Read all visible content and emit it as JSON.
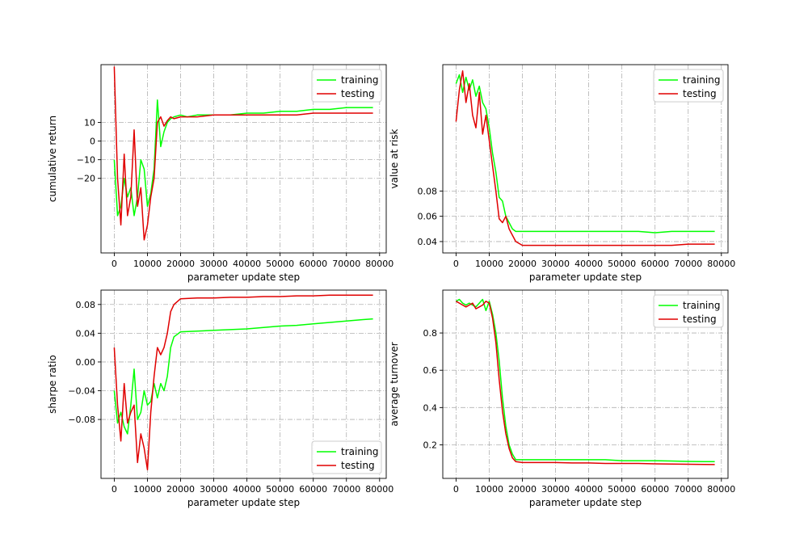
{
  "colors": {
    "training": "#00ff00",
    "testing": "#e00000",
    "grid": "#b0b0b0",
    "axis": "#000000"
  },
  "chart_data": [
    {
      "type": "line",
      "id": "cumret",
      "xlabel": "parameter update step",
      "ylabel": "cumulative return",
      "xlim": [
        -4000,
        82000
      ],
      "ylim": [
        -60,
        41
      ],
      "xticks": [
        0,
        10000,
        20000,
        30000,
        40000,
        50000,
        60000,
        70000,
        80000
      ],
      "yticks": [
        10,
        0,
        -10,
        -20
      ],
      "ytick_labels": [
        "10",
        "0",
        "−10",
        "−20"
      ],
      "legend_loc": "top-right",
      "series": [
        {
          "name": "training",
          "color": "#00ff00",
          "x": [
            0,
            1000,
            2000,
            3000,
            4000,
            5000,
            6000,
            7000,
            8000,
            9000,
            10000,
            11000,
            12000,
            13000,
            14000,
            15000,
            16000,
            17000,
            18000,
            20000,
            22000,
            25000,
            30000,
            35000,
            40000,
            45000,
            50000,
            55000,
            60000,
            65000,
            70000,
            75000,
            78000
          ],
          "y": [
            -10,
            -40,
            -35,
            -20,
            -30,
            -25,
            -40,
            -30,
            -10,
            -15,
            -35,
            -28,
            -15,
            22,
            -3,
            5,
            10,
            12,
            13,
            14,
            13,
            14,
            14,
            14,
            15,
            15,
            16,
            16,
            17,
            17,
            18,
            18,
            18
          ]
        },
        {
          "name": "testing",
          "color": "#e00000",
          "x": [
            0,
            1000,
            2000,
            3000,
            4000,
            5000,
            6000,
            7000,
            8000,
            9000,
            10000,
            11000,
            12000,
            13000,
            14000,
            15000,
            16000,
            17000,
            18000,
            20000,
            22000,
            25000,
            30000,
            35000,
            40000,
            45000,
            50000,
            55000,
            60000,
            65000,
            70000,
            75000,
            78000
          ],
          "y": [
            40,
            -20,
            -45,
            -7,
            -40,
            -30,
            6,
            -35,
            -25,
            -53,
            -45,
            -30,
            -20,
            10,
            13,
            8,
            11,
            13,
            12,
            13,
            13,
            13,
            14,
            14,
            14,
            14,
            14,
            14,
            15,
            15,
            15,
            15,
            15
          ]
        }
      ]
    },
    {
      "type": "line",
      "id": "var",
      "xlabel": "parameter update step",
      "ylabel": "value at risk",
      "xlim": [
        -4000,
        82000
      ],
      "ylim": [
        0.031,
        0.18
      ],
      "xticks": [
        0,
        10000,
        20000,
        30000,
        40000,
        50000,
        60000,
        70000,
        80000
      ],
      "yticks": [
        0.04,
        0.06,
        0.08
      ],
      "ytick_labels": [
        "0.04",
        "0.06",
        "0.08"
      ],
      "legend_loc": "top-right",
      "series": [
        {
          "name": "training",
          "color": "#00ff00",
          "x": [
            0,
            1000,
            2000,
            3000,
            4000,
            5000,
            6000,
            7000,
            8000,
            9000,
            10000,
            11000,
            12000,
            13000,
            14000,
            15000,
            16000,
            17000,
            18000,
            20000,
            25000,
            30000,
            35000,
            40000,
            45000,
            50000,
            55000,
            60000,
            65000,
            70000,
            75000,
            78000
          ],
          "y": [
            0.165,
            0.172,
            0.158,
            0.17,
            0.16,
            0.168,
            0.155,
            0.163,
            0.15,
            0.145,
            0.13,
            0.11,
            0.095,
            0.075,
            0.072,
            0.06,
            0.055,
            0.05,
            0.048,
            0.048,
            0.048,
            0.048,
            0.048,
            0.048,
            0.048,
            0.048,
            0.048,
            0.047,
            0.048,
            0.048,
            0.048,
            0.048
          ]
        },
        {
          "name": "testing",
          "color": "#e00000",
          "x": [
            0,
            1000,
            2000,
            3000,
            4000,
            5000,
            6000,
            7000,
            8000,
            9000,
            10000,
            11000,
            12000,
            13000,
            14000,
            15000,
            16000,
            17000,
            18000,
            20000,
            25000,
            30000,
            35000,
            40000,
            45000,
            50000,
            55000,
            60000,
            65000,
            70000,
            75000,
            78000
          ],
          "y": [
            0.135,
            0.16,
            0.175,
            0.15,
            0.165,
            0.14,
            0.13,
            0.158,
            0.125,
            0.14,
            0.12,
            0.1,
            0.08,
            0.058,
            0.055,
            0.06,
            0.05,
            0.045,
            0.04,
            0.037,
            0.037,
            0.037,
            0.037,
            0.037,
            0.037,
            0.037,
            0.037,
            0.037,
            0.037,
            0.038,
            0.038,
            0.038
          ]
        }
      ]
    },
    {
      "type": "line",
      "id": "sharpe",
      "xlabel": "parameter update step",
      "ylabel": "sharpe ratio",
      "xlim": [
        -4000,
        82000
      ],
      "ylim": [
        -0.162,
        0.1
      ],
      "xticks": [
        0,
        10000,
        20000,
        30000,
        40000,
        50000,
        60000,
        70000,
        80000
      ],
      "yticks": [
        0.08,
        0.04,
        0.0,
        -0.04,
        -0.08
      ],
      "ytick_labels": [
        "0.08",
        "0.04",
        "0.00",
        "−0.04",
        "−0.08"
      ],
      "legend_loc": "bottom-right",
      "series": [
        {
          "name": "training",
          "color": "#00ff00",
          "x": [
            0,
            1000,
            2000,
            3000,
            4000,
            5000,
            6000,
            7000,
            8000,
            9000,
            10000,
            11000,
            12000,
            13000,
            14000,
            15000,
            16000,
            17000,
            18000,
            20000,
            25000,
            30000,
            35000,
            40000,
            45000,
            50000,
            55000,
            60000,
            65000,
            70000,
            75000,
            78000
          ],
          "y": [
            -0.04,
            -0.085,
            -0.07,
            -0.09,
            -0.1,
            -0.06,
            -0.01,
            -0.08,
            -0.07,
            -0.04,
            -0.06,
            -0.055,
            -0.03,
            -0.05,
            -0.03,
            -0.04,
            -0.02,
            0.02,
            0.035,
            0.042,
            0.043,
            0.044,
            0.045,
            0.046,
            0.048,
            0.05,
            0.051,
            0.053,
            0.055,
            0.057,
            0.059,
            0.06
          ]
        },
        {
          "name": "testing",
          "color": "#e00000",
          "x": [
            0,
            1000,
            2000,
            3000,
            4000,
            5000,
            6000,
            7000,
            8000,
            9000,
            10000,
            11000,
            12000,
            13000,
            14000,
            15000,
            16000,
            17000,
            18000,
            20000,
            25000,
            30000,
            35000,
            40000,
            45000,
            50000,
            55000,
            60000,
            65000,
            70000,
            75000,
            78000
          ],
          "y": [
            0.02,
            -0.06,
            -0.11,
            -0.03,
            -0.085,
            -0.07,
            -0.06,
            -0.14,
            -0.1,
            -0.12,
            -0.15,
            -0.07,
            -0.02,
            0.02,
            0.01,
            0.02,
            0.04,
            0.07,
            0.08,
            0.088,
            0.089,
            0.089,
            0.09,
            0.09,
            0.091,
            0.091,
            0.092,
            0.092,
            0.093,
            0.093,
            0.093,
            0.093
          ]
        }
      ]
    },
    {
      "type": "line",
      "id": "turnover",
      "xlabel": "parameter update step",
      "ylabel": "average turnover",
      "xlim": [
        -4000,
        82000
      ],
      "ylim": [
        0.02,
        1.03
      ],
      "xticks": [
        0,
        10000,
        20000,
        30000,
        40000,
        50000,
        60000,
        70000,
        80000
      ],
      "yticks": [
        0.2,
        0.4,
        0.6,
        0.8
      ],
      "ytick_labels": [
        "0.2",
        "0.4",
        "0.6",
        "0.8"
      ],
      "legend_loc": "top-right",
      "series": [
        {
          "name": "training",
          "color": "#00ff00",
          "x": [
            0,
            1000,
            2000,
            3000,
            4000,
            5000,
            6000,
            7000,
            8000,
            9000,
            10000,
            11000,
            12000,
            13000,
            14000,
            15000,
            16000,
            17000,
            18000,
            20000,
            25000,
            30000,
            35000,
            40000,
            45000,
            50000,
            55000,
            60000,
            65000,
            70000,
            75000,
            78000
          ],
          "y": [
            0.97,
            0.98,
            0.96,
            0.95,
            0.96,
            0.95,
            0.94,
            0.96,
            0.98,
            0.92,
            0.97,
            0.9,
            0.8,
            0.65,
            0.45,
            0.3,
            0.2,
            0.15,
            0.12,
            0.12,
            0.12,
            0.12,
            0.12,
            0.12,
            0.12,
            0.115,
            0.115,
            0.115,
            0.113,
            0.111,
            0.11,
            0.11
          ]
        },
        {
          "name": "testing",
          "color": "#e00000",
          "x": [
            0,
            1000,
            2000,
            3000,
            4000,
            5000,
            6000,
            7000,
            8000,
            9000,
            10000,
            11000,
            12000,
            13000,
            14000,
            15000,
            16000,
            17000,
            18000,
            20000,
            25000,
            30000,
            35000,
            40000,
            45000,
            50000,
            55000,
            60000,
            65000,
            70000,
            75000,
            78000
          ],
          "y": [
            0.97,
            0.96,
            0.95,
            0.94,
            0.95,
            0.96,
            0.93,
            0.94,
            0.95,
            0.97,
            0.96,
            0.88,
            0.75,
            0.55,
            0.38,
            0.26,
            0.18,
            0.13,
            0.11,
            0.105,
            0.105,
            0.105,
            0.103,
            0.103,
            0.1,
            0.1,
            0.1,
            0.098,
            0.097,
            0.096,
            0.095,
            0.094
          ]
        }
      ]
    }
  ]
}
